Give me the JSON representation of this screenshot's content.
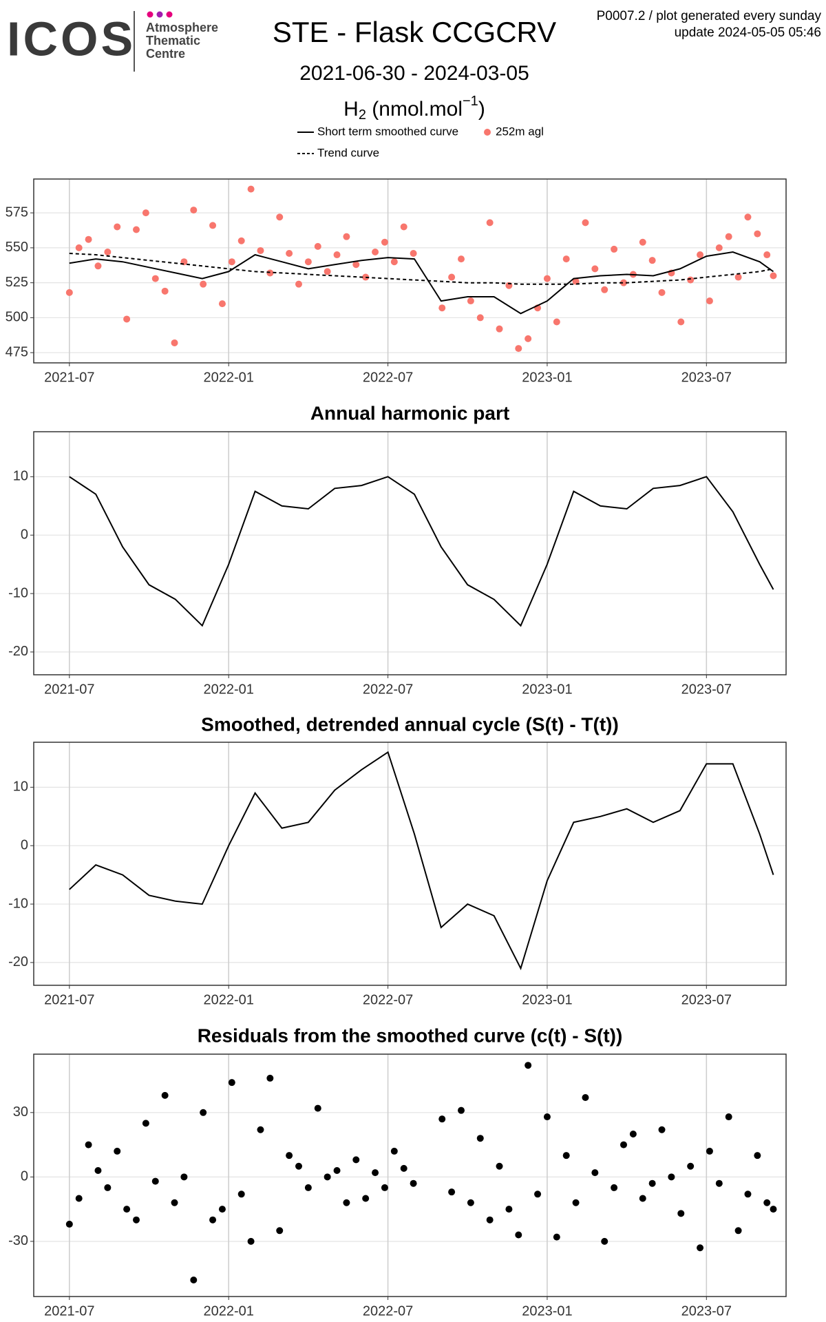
{
  "header": {
    "logo": "ICOS",
    "logo_lines": [
      "Atmosphere",
      "Thematic",
      "Centre"
    ],
    "info": [
      "P0007.2 / plot generated every sunday",
      "update  2024-05-05 05:46"
    ]
  },
  "chart_data": [
    {
      "type": "line",
      "title": "STE - Flask CCGCRV",
      "subtitle": "2021-06-30 - 2024-03-05",
      "y_label": {
        "base": "H",
        "sub": "2",
        "unit": " (nmol.mol",
        "sup": "−1",
        "close": ")"
      },
      "xlim": [
        2021.388,
        2023.75
      ],
      "xticks": [
        {
          "value": 2021.5,
          "label": "2021-07"
        },
        {
          "value": 2022.0,
          "label": "2022-01"
        },
        {
          "value": 2022.5,
          "label": "2022-07"
        },
        {
          "value": 2023.0,
          "label": "2023-01"
        },
        {
          "value": 2023.5,
          "label": "2023-07"
        }
      ],
      "ylim": [
        467.7,
        599.2
      ],
      "yticks": [
        475,
        500,
        525,
        550,
        575
      ],
      "grid": true,
      "series": [
        {
          "name": "Short term smoothed curve",
          "type": "line",
          "color": "#000000",
          "dash": false,
          "x": [
            2021.5,
            2021.583,
            2021.667,
            2021.75,
            2021.833,
            2021.917,
            2022.0,
            2022.083,
            2022.167,
            2022.25,
            2022.333,
            2022.417,
            2022.5,
            2022.583,
            2022.667,
            2022.75,
            2022.833,
            2022.917,
            2023.0,
            2023.083,
            2023.167,
            2023.25,
            2023.333,
            2023.417,
            2023.5,
            2023.583,
            2023.667,
            2023.71
          ],
          "values": [
            539,
            542,
            540,
            536,
            532,
            528,
            533,
            545,
            540,
            535,
            538,
            541,
            543,
            542,
            512,
            515,
            515,
            503,
            512,
            528,
            530,
            531,
            530,
            535,
            544,
            547,
            540,
            533
          ]
        },
        {
          "name": "252m agl",
          "type": "scatter",
          "color": "#f8766d",
          "x": [
            2021.5,
            2021.53,
            2021.56,
            2021.59,
            2021.62,
            2021.65,
            2021.68,
            2021.71,
            2021.74,
            2021.77,
            2021.8,
            2021.83,
            2021.86,
            2021.89,
            2021.92,
            2021.95,
            2021.98,
            2022.01,
            2022.04,
            2022.07,
            2022.1,
            2022.13,
            2022.16,
            2022.19,
            2022.22,
            2022.25,
            2022.28,
            2022.31,
            2022.34,
            2022.37,
            2022.4,
            2022.43,
            2022.46,
            2022.49,
            2022.52,
            2022.55,
            2022.58,
            2022.67,
            2022.7,
            2022.73,
            2022.76,
            2022.79,
            2022.82,
            2022.85,
            2022.88,
            2022.91,
            2022.94,
            2022.97,
            2023.0,
            2023.03,
            2023.06,
            2023.09,
            2023.12,
            2023.15,
            2023.18,
            2023.21,
            2023.24,
            2023.27,
            2023.3,
            2023.33,
            2023.36,
            2023.39,
            2023.42,
            2023.45,
            2023.48,
            2023.51,
            2023.54,
            2023.57,
            2023.6,
            2023.63,
            2023.66,
            2023.69,
            2023.71
          ],
          "values": [
            518,
            550,
            556,
            537,
            547,
            565,
            499,
            563,
            575,
            528,
            519,
            482,
            540,
            577,
            524,
            566,
            510,
            540,
            555,
            592,
            548,
            532,
            572,
            546,
            524,
            540,
            551,
            533,
            545,
            558,
            538,
            529,
            547,
            554,
            540,
            565,
            546,
            507,
            529,
            542,
            512,
            500,
            568,
            492,
            523,
            478,
            485,
            507,
            528,
            497,
            542,
            526,
            568,
            535,
            520,
            549,
            525,
            531,
            554,
            541,
            518,
            532,
            497,
            527,
            545,
            512,
            550,
            558,
            529,
            572,
            560,
            545,
            530
          ]
        },
        {
          "name": "Trend curve",
          "type": "line",
          "color": "#000000",
          "dash": true,
          "x": [
            2021.5,
            2021.583,
            2021.667,
            2021.75,
            2021.833,
            2021.917,
            2022.0,
            2022.083,
            2022.167,
            2022.25,
            2022.333,
            2022.417,
            2022.5,
            2022.583,
            2022.667,
            2022.75,
            2022.833,
            2022.917,
            2023.0,
            2023.083,
            2023.167,
            2023.25,
            2023.333,
            2023.417,
            2023.5,
            2023.583,
            2023.667,
            2023.71
          ],
          "values": [
            546,
            545,
            543,
            541,
            539,
            537,
            535,
            533,
            532,
            531,
            530,
            529,
            528,
            527,
            526,
            525,
            525,
            524,
            524,
            524,
            525,
            525,
            526,
            527,
            529,
            531,
            533,
            535
          ]
        }
      ]
    },
    {
      "type": "line",
      "title": "Annual harmonic part",
      "xlim": [
        2021.388,
        2023.75
      ],
      "xticks": [
        {
          "value": 2021.5,
          "label": "2021-07"
        },
        {
          "value": 2022.0,
          "label": "2022-01"
        },
        {
          "value": 2022.5,
          "label": "2022-07"
        },
        {
          "value": 2023.0,
          "label": "2023-01"
        },
        {
          "value": 2023.5,
          "label": "2023-07"
        }
      ],
      "ylim": [
        -23.9,
        17.7
      ],
      "yticks": [
        -20,
        -10,
        0,
        10
      ],
      "grid": true,
      "series": [
        {
          "type": "line",
          "color": "#000000",
          "x": [
            2021.5,
            2021.583,
            2021.667,
            2021.75,
            2021.833,
            2021.917,
            2022.0,
            2022.083,
            2022.167,
            2022.25,
            2022.333,
            2022.417,
            2022.5,
            2022.583,
            2022.667,
            2022.75,
            2022.833,
            2022.917,
            2023.0,
            2023.083,
            2023.167,
            2023.25,
            2023.333,
            2023.417,
            2023.5,
            2023.583,
            2023.667,
            2023.71
          ],
          "values": [
            10,
            7,
            -2,
            -8.5,
            -11,
            -15.5,
            -5,
            7.5,
            5,
            4.5,
            8,
            8.5,
            10,
            7,
            -2,
            -8.5,
            -11,
            -15.5,
            -5,
            7.5,
            5,
            4.5,
            8,
            8.5,
            10,
            4,
            -5,
            -9.3
          ]
        }
      ]
    },
    {
      "type": "line",
      "title": "Smoothed, detrended annual cycle (S(t) - T(t))",
      "xlim": [
        2021.388,
        2023.75
      ],
      "xticks": [
        {
          "value": 2021.5,
          "label": "2021-07"
        },
        {
          "value": 2022.0,
          "label": "2022-01"
        },
        {
          "value": 2022.5,
          "label": "2022-07"
        },
        {
          "value": 2023.0,
          "label": "2023-01"
        },
        {
          "value": 2023.5,
          "label": "2023-07"
        }
      ],
      "ylim": [
        -23.9,
        17.7
      ],
      "yticks": [
        -20,
        -10,
        0,
        10
      ],
      "grid": true,
      "series": [
        {
          "type": "line",
          "color": "#000000",
          "x": [
            2021.5,
            2021.583,
            2021.667,
            2021.75,
            2021.833,
            2021.917,
            2022.0,
            2022.083,
            2022.167,
            2022.25,
            2022.333,
            2022.417,
            2022.5,
            2022.583,
            2022.667,
            2022.75,
            2022.833,
            2022.917,
            2023.0,
            2023.083,
            2023.167,
            2023.25,
            2023.333,
            2023.417,
            2023.5,
            2023.583,
            2023.667,
            2023.71
          ],
          "values": [
            -7.5,
            -3.3,
            -5,
            -8.5,
            -9.5,
            -10,
            0,
            9,
            3,
            4,
            9.5,
            13,
            16,
            2,
            -14,
            -10,
            -12,
            -21,
            -6,
            4,
            5,
            6.3,
            4,
            6,
            14,
            14,
            2,
            -5
          ]
        }
      ]
    },
    {
      "type": "scatter",
      "title": "Residuals from the smoothed curve (c(t) - S(t))",
      "xlim": [
        2021.388,
        2023.75
      ],
      "xticks": [
        {
          "value": 2021.5,
          "label": "2021-07"
        },
        {
          "value": 2022.0,
          "label": "2022-01"
        },
        {
          "value": 2022.5,
          "label": "2022-07"
        },
        {
          "value": 2023.0,
          "label": "2023-01"
        },
        {
          "value": 2023.5,
          "label": "2023-07"
        }
      ],
      "ylim": [
        -55.7,
        57.2
      ],
      "yticks": [
        -30,
        0,
        30
      ],
      "grid": true,
      "series": [
        {
          "type": "scatter",
          "color": "#000000",
          "x": [
            2021.5,
            2021.53,
            2021.56,
            2021.59,
            2021.62,
            2021.65,
            2021.68,
            2021.71,
            2021.74,
            2021.77,
            2021.8,
            2021.83,
            2021.86,
            2021.89,
            2021.92,
            2021.95,
            2021.98,
            2022.01,
            2022.04,
            2022.07,
            2022.1,
            2022.13,
            2022.16,
            2022.19,
            2022.22,
            2022.25,
            2022.28,
            2022.31,
            2022.34,
            2022.37,
            2022.4,
            2022.43,
            2022.46,
            2022.49,
            2022.52,
            2022.55,
            2022.58,
            2022.67,
            2022.7,
            2022.73,
            2022.76,
            2022.79,
            2022.82,
            2022.85,
            2022.88,
            2022.91,
            2022.94,
            2022.97,
            2023.0,
            2023.03,
            2023.06,
            2023.09,
            2023.12,
            2023.15,
            2023.18,
            2023.21,
            2023.24,
            2023.27,
            2023.3,
            2023.33,
            2023.36,
            2023.39,
            2023.42,
            2023.45,
            2023.48,
            2023.51,
            2023.54,
            2023.57,
            2023.6,
            2023.63,
            2023.66,
            2023.69,
            2023.71
          ],
          "values": [
            -22,
            -10,
            15,
            3,
            -5,
            12,
            -15,
            -20,
            25,
            -2,
            38,
            -12,
            0,
            -48,
            30,
            -20,
            -15,
            44,
            -8,
            -30,
            22,
            46,
            -25,
            10,
            5,
            -5,
            32,
            0,
            3,
            -12,
            8,
            -10,
            2,
            -5,
            12,
            4,
            -3,
            27,
            -7,
            31,
            -12,
            18,
            -20,
            5,
            -15,
            -27,
            52,
            -8,
            28,
            -28,
            10,
            -12,
            37,
            2,
            -30,
            -5,
            15,
            20,
            -10,
            -3,
            22,
            0,
            -17,
            5,
            -33,
            12,
            -3,
            28,
            -25,
            -8,
            10,
            -12,
            -15
          ]
        }
      ]
    }
  ]
}
